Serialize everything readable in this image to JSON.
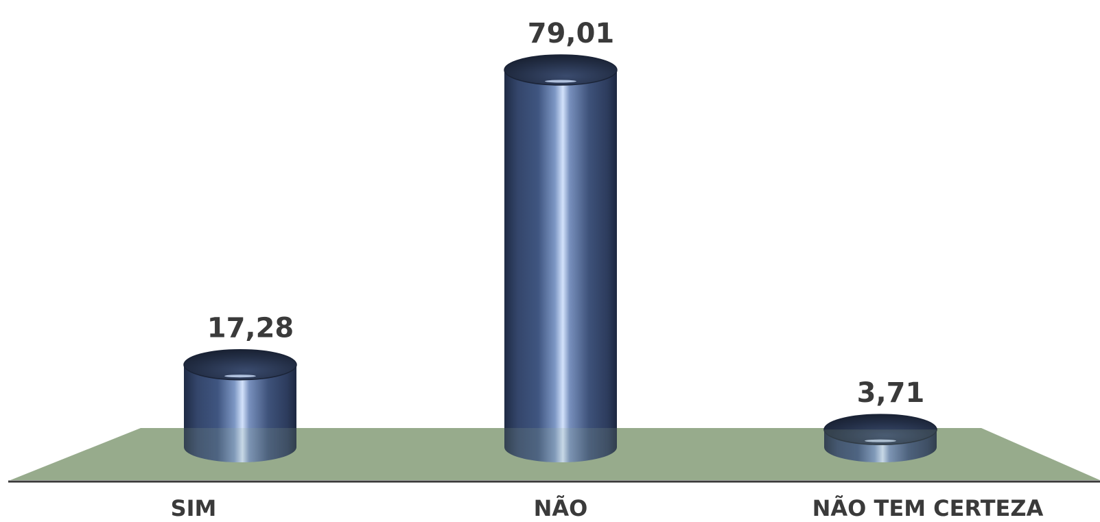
{
  "chart_data": {
    "type": "bar",
    "categories": [
      "SIM",
      "NÃO",
      "NÃO TEM CERTEZA"
    ],
    "values": [
      17.28,
      79.01,
      3.71
    ],
    "value_labels": [
      "17,28",
      "79,01",
      "3,71"
    ],
    "title": "",
    "xlabel": "",
    "ylabel": "",
    "ylim": [
      0,
      80
    ],
    "grid": false,
    "legend": "none",
    "bar_shape": "cylinder",
    "colors": {
      "bar": "#3d5078",
      "bar_dark": "#1f2b45",
      "bar_highlight": "#c7d8f5",
      "floor": "#97ab8c",
      "axis": "#3a3a3a",
      "text": "#3a3a3a"
    }
  }
}
